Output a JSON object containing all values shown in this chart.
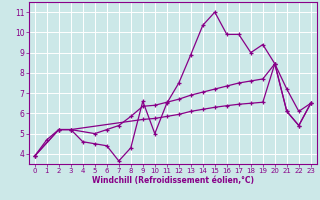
{
  "title": "",
  "xlabel": "Windchill (Refroidissement éolien,°C)",
  "ylabel": "",
  "background_color": "#cce8e8",
  "grid_color": "#ffffff",
  "line_color": "#880088",
  "xlim": [
    -0.5,
    23.5
  ],
  "ylim": [
    3.5,
    11.5
  ],
  "xticks": [
    0,
    1,
    2,
    3,
    4,
    5,
    6,
    7,
    8,
    9,
    10,
    11,
    12,
    13,
    14,
    15,
    16,
    17,
    18,
    19,
    20,
    21,
    22,
    23
  ],
  "yticks": [
    4,
    5,
    6,
    7,
    8,
    9,
    10,
    11
  ],
  "line1_x": [
    0,
    1,
    2,
    3,
    4,
    5,
    6,
    7,
    8,
    9,
    10,
    11,
    12,
    13,
    14,
    15,
    16,
    17,
    18,
    19,
    20,
    21,
    22,
    23
  ],
  "line1_y": [
    3.9,
    4.7,
    5.2,
    5.2,
    4.6,
    4.5,
    4.4,
    3.65,
    4.3,
    6.6,
    5.0,
    6.5,
    7.5,
    8.9,
    10.35,
    11.0,
    9.9,
    9.9,
    9.0,
    9.4,
    8.45,
    7.2,
    6.1,
    6.5
  ],
  "line2_x": [
    0,
    2,
    3,
    5,
    6,
    7,
    8,
    9,
    10,
    11,
    12,
    13,
    14,
    15,
    16,
    17,
    18,
    19,
    20,
    21,
    22,
    23
  ],
  "line2_y": [
    3.9,
    5.2,
    5.2,
    5.0,
    5.2,
    5.4,
    5.85,
    6.35,
    6.4,
    6.55,
    6.7,
    6.9,
    7.05,
    7.2,
    7.35,
    7.5,
    7.6,
    7.7,
    8.45,
    6.1,
    5.4,
    6.5
  ],
  "line3_x": [
    0,
    2,
    3,
    9,
    10,
    11,
    12,
    13,
    14,
    15,
    16,
    17,
    18,
    19,
    20,
    21,
    22,
    23
  ],
  "line3_y": [
    3.9,
    5.2,
    5.2,
    5.7,
    5.75,
    5.85,
    5.95,
    6.1,
    6.2,
    6.3,
    6.38,
    6.45,
    6.5,
    6.55,
    8.45,
    6.1,
    5.4,
    6.5
  ]
}
